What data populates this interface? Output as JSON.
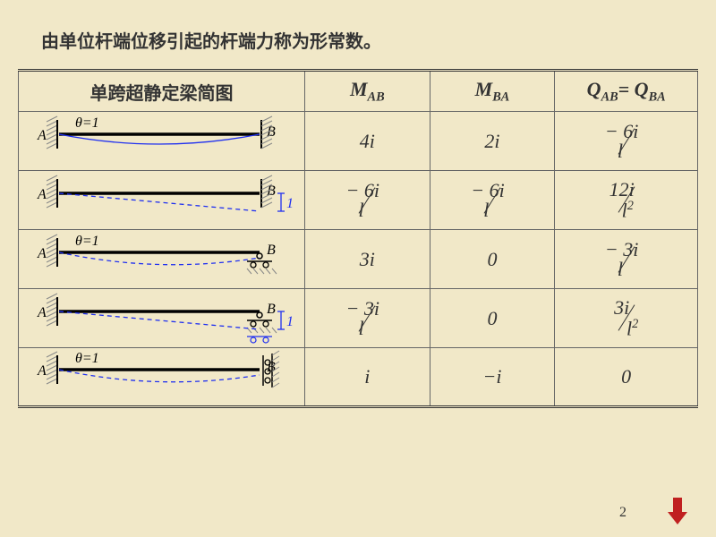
{
  "colors": {
    "background": "#f1e8c8",
    "text": "#333333",
    "table_border": "#666666",
    "beam": "#000000",
    "deflection": "#2030f0",
    "hatch": "#888888",
    "arrow_button": "#c02020"
  },
  "title": "由单位杆端位移引起的杆端力称为形常数。",
  "page_number": "2",
  "headers": {
    "diagram": "单跨超静定梁简图",
    "mab": "M<span class='sub'>AB</span>",
    "mba": "M<span class='sub'>BA</span>",
    "qab": "Q<span class='sub'>AB</span>= Q<span class='sub'>BA</span>"
  },
  "rows": [
    {
      "diagram": {
        "left": "fixed",
        "right": "fixed",
        "theta_label": "θ=1",
        "deflect": "solid_curve",
        "disp_label": ""
      },
      "mab": "4<i>i</i>",
      "mba": "2<i>i</i>",
      "qab": "<span class='frac'><span class='num'>− 6<i>i</i></span><span class='slash'></span><span class='den'><i>l</i></span></span>"
    },
    {
      "diagram": {
        "left": "fixed",
        "right": "fixed",
        "theta_label": "",
        "deflect": "dash_displ",
        "disp_label": "1"
      },
      "mab": "<span class='frac'><span class='num'>− 6<i>i</i></span><span class='slash'></span><span class='den'><i>l</i></span></span>",
      "mba": "<span class='frac'><span class='num'>− 6<i>i</i></span><span class='slash'></span><span class='den'><i>l</i></span></span>",
      "qab": "<span class='frac'><span class='num'>12<i>i</i></span><span class='slash'></span><span class='den'><i>l</i><span class='sup'>2</span></span></span>"
    },
    {
      "diagram": {
        "left": "fixed",
        "right": "roller_top",
        "theta_label": "θ=1",
        "deflect": "dash_curve",
        "disp_label": ""
      },
      "mab": "3<i>i</i>",
      "mba": "0",
      "qab": "<span class='frac'><span class='num'>− 3<i>i</i></span><span class='slash'></span><span class='den'><i>l</i></span></span>"
    },
    {
      "diagram": {
        "left": "fixed",
        "right": "roller_top",
        "theta_label": "",
        "deflect": "dash_displ",
        "disp_label": "1"
      },
      "mab": "<span class='frac'><span class='num'>− 3<i>i</i></span><span class='slash'></span><span class='den'><i>l</i></span></span>",
      "mba": "0",
      "qab": "<span class='frac'><span class='num'>3<i>i</i></span><span class='slash'></span><span class='den'><i>l</i><span class='sup'>2</span></span></span>"
    },
    {
      "diagram": {
        "left": "fixed",
        "right": "slider",
        "theta_label": "θ=1",
        "deflect": "dash_curve",
        "disp_label": ""
      },
      "mab": "<i>i</i>",
      "mba": "−<i>i</i>",
      "qab": "0"
    }
  ]
}
